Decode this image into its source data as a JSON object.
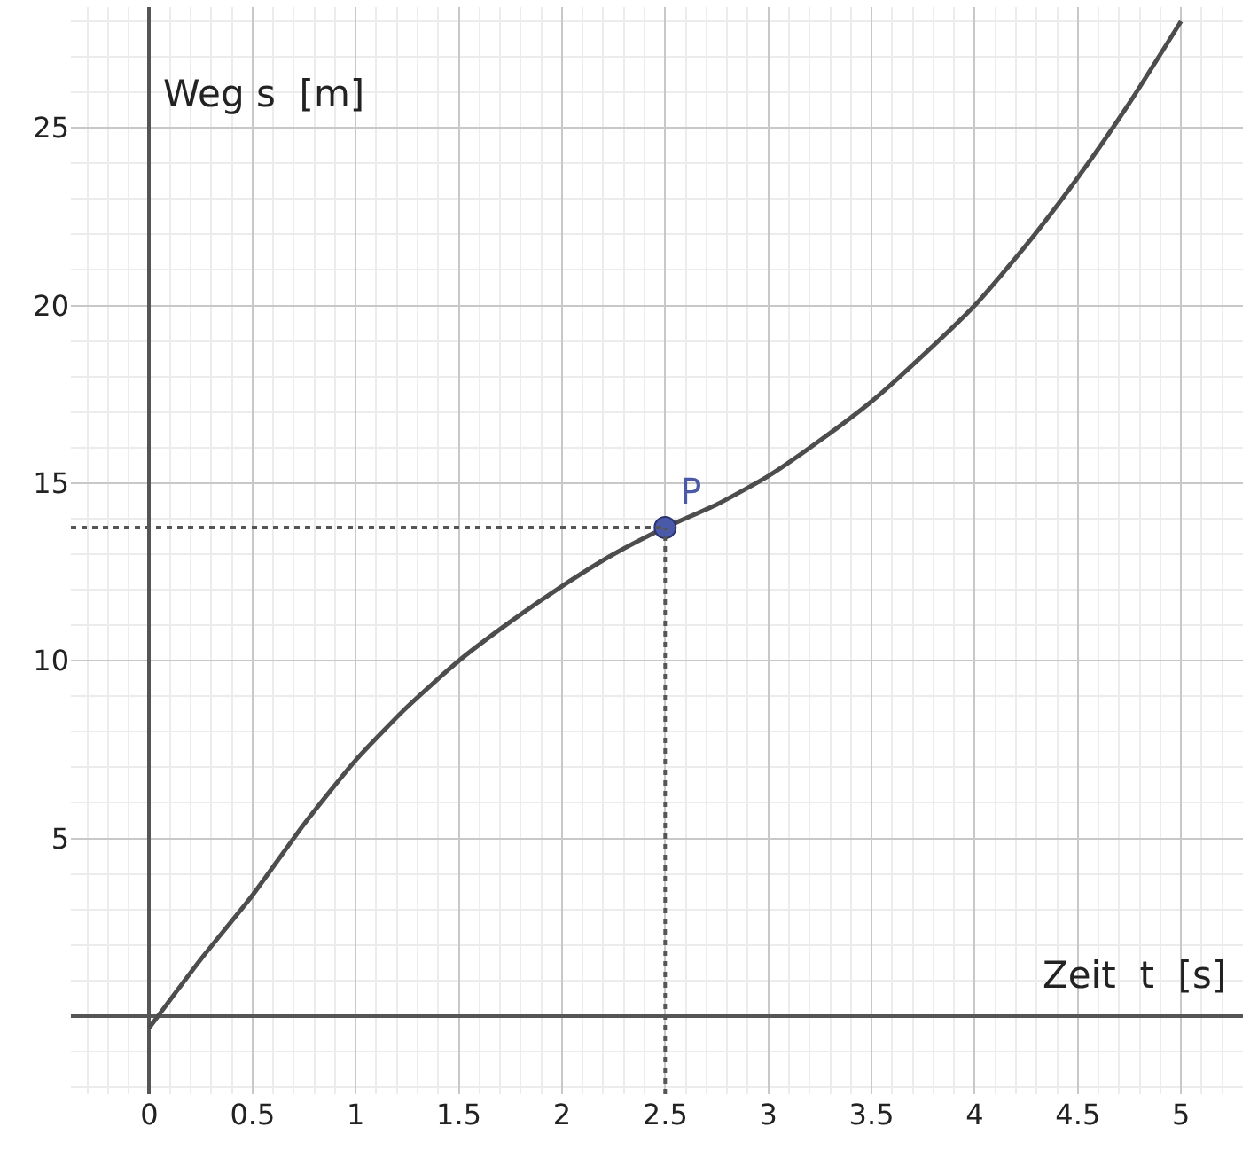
{
  "chart_data": {
    "type": "line",
    "xlabel": "Zeit  t  [s]",
    "ylabel": "Weg s  [m]",
    "xlim": [
      -0.38,
      5.3
    ],
    "ylim": [
      -2.2,
      28.4
    ],
    "xticks": [
      0,
      0.5,
      1,
      1.5,
      2,
      2.5,
      3,
      3.5,
      4,
      4.5,
      5
    ],
    "yticks": [
      5,
      10,
      15,
      20,
      25
    ],
    "grid": true,
    "series": [
      {
        "color": "#4d4d4d",
        "x": [
          0,
          0.25,
          0.5,
          0.75,
          1,
          1.25,
          1.5,
          1.75,
          2,
          2.25,
          2.5,
          2.75,
          3,
          3.25,
          3.5,
          3.75,
          4,
          4.25,
          4.5,
          4.75,
          5
        ],
        "values": [
          -0.33,
          1.6,
          3.4,
          5.4,
          7.2,
          8.7,
          10,
          11.1,
          12.1,
          13,
          13.75,
          14.4,
          15.2,
          16.2,
          17.3,
          18.6,
          20,
          21.7,
          23.6,
          25.7,
          28
        ]
      },
      {
        "type": "scatter",
        "name": "P",
        "color": "#4a5aa8",
        "x": [
          2.5
        ],
        "values": [
          13.75
        ]
      }
    ],
    "ref_lines": [
      {
        "axis": "x",
        "value": 2.5,
        "line_style": "dotted",
        "color": "#555555"
      },
      {
        "axis": "y",
        "value": 13.75,
        "line_style": "dotted",
        "color": "#555555"
      }
    ]
  }
}
